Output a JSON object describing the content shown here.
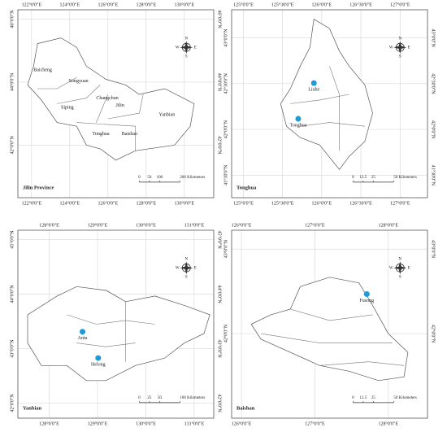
{
  "compass": [
    "N",
    "E",
    "S",
    "W"
  ],
  "panels": [
    {
      "title": "Jilin Province",
      "lon_labels": [
        "122°0'0\"E",
        "124°0'0\"E",
        "126°0'0\"E",
        "128°0'0\"E",
        "130°0'0\"E"
      ],
      "lat_labels": [
        "46°0'0\"N",
        "44°0'0\"N",
        "42°0'0\"N"
      ],
      "places": [
        "Baicheng",
        "Songyuan",
        "Changchun",
        "Siping",
        "Jilin",
        "Tonghua",
        "Baishan",
        "Yanbian"
      ],
      "scale_labels": [
        "0",
        "50",
        "100",
        "200 Kilometers"
      ]
    },
    {
      "title": "Tonghua",
      "lon_labels": [
        "125°0'0\"E",
        "125°30'0\"E",
        "126°0'0\"E",
        "126°30'0\"E",
        "127°0'0\"E"
      ],
      "lat_labels": [
        "43°0'0\"N",
        "42°30'0\"N",
        "42°0'0\"N",
        "41°30'0\"N"
      ],
      "places": [
        "Liuhe",
        "Tonghua"
      ],
      "scale_labels": [
        "0",
        "12.5",
        "25",
        "50 Kilometers"
      ]
    },
    {
      "title": "Yanbian",
      "lon_labels": [
        "128°0'0\"E",
        "129°0'0\"E",
        "130°0'0\"E",
        "131°0'0\"E"
      ],
      "lat_labels": [
        "45°0'0\"N",
        "44°0'0\"N",
        "43°0'0\"N",
        "42°0'0\"N"
      ],
      "places": [
        "Antu",
        "Helong"
      ],
      "scale_labels": [
        "0",
        "25",
        "50",
        "100 Kilometers"
      ]
    },
    {
      "title": "Baishan",
      "lon_labels": [
        "126°0'0\"E",
        "127°0'0\"E",
        "128°0'0\"E"
      ],
      "lat_labels": [
        "43°0'0\"N",
        "42°0'0\"N"
      ],
      "places": [
        "Fusong"
      ],
      "scale_labels": [
        "0",
        "12.5",
        "25",
        "50 Kilometers"
      ]
    }
  ]
}
